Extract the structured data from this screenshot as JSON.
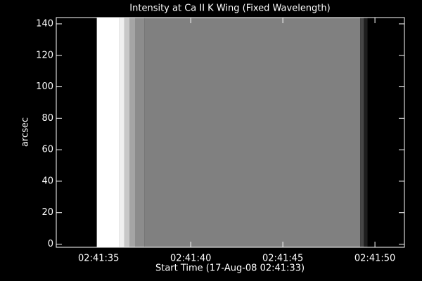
{
  "chart_data": {
    "type": "image",
    "title": "Intensity at Ca II K Wing (Fixed Wavelength)",
    "x_label": "Start Time (17-Aug-08 02:41:33)",
    "y_label": "arcsec",
    "x": [
      9692.7,
      9694.9,
      9696.1,
      9696.4,
      9696.7,
      9697.0,
      9697.5,
      9709.2,
      9709.4,
      9709.6
    ],
    "intensity": [
      0,
      255,
      240,
      200,
      165,
      140,
      128,
      70,
      30,
      0
    ],
    "xlim": [
      9692.7,
      9711.6
    ],
    "ylim": [
      -2,
      144
    ],
    "xticks": [
      {
        "value": 9695,
        "label": "02:41:35"
      },
      {
        "value": 9700,
        "label": "02:41:40"
      },
      {
        "value": 9705,
        "label": "02:41:45"
      },
      {
        "value": 9710,
        "label": "02:41:50"
      }
    ],
    "yticks": [
      0,
      20,
      40,
      60,
      80,
      100,
      120,
      140
    ]
  }
}
